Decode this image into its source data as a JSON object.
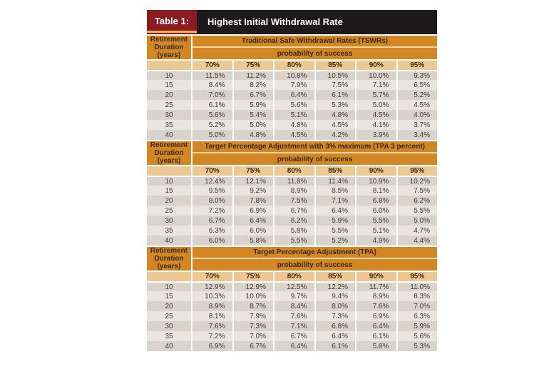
{
  "header": {
    "tag": "Table 1:",
    "title": "Highest Initial Withdrawal Rate"
  },
  "row_header": "Retirement Duration (years)",
  "subheader": "probability of success",
  "columns": [
    "70%",
    "75%",
    "80%",
    "85%",
    "90%",
    "95%"
  ],
  "sections": [
    {
      "title": "Traditional Safe Withdrawal Rates (TSWRs)",
      "rows": [
        {
          "years": "10",
          "values": [
            "11.5%",
            "11.2%",
            "10.8%",
            "10.5%",
            "10.0%",
            "9.3%"
          ]
        },
        {
          "years": "15",
          "values": [
            "8.4%",
            "8.2%",
            "7.9%",
            "7.5%",
            "7.1%",
            "6.5%"
          ]
        },
        {
          "years": "20",
          "values": [
            "7.0%",
            "6.7%",
            "6.4%",
            "6.1%",
            "5.7%",
            "5.2%"
          ]
        },
        {
          "years": "25",
          "values": [
            "6.1%",
            "5.9%",
            "5.6%",
            "5.3%",
            "5.0%",
            "4.5%"
          ]
        },
        {
          "years": "30",
          "values": [
            "5.6%",
            "5.4%",
            "5.1%",
            "4.8%",
            "4.5%",
            "4.0%"
          ]
        },
        {
          "years": "35",
          "values": [
            "5.2%",
            "5.0%",
            "4.8%",
            "4.5%",
            "4.1%",
            "3.7%"
          ]
        },
        {
          "years": "40",
          "values": [
            "5.0%",
            "4.8%",
            "4.5%",
            "4.2%",
            "3.9%",
            "3.4%"
          ]
        }
      ]
    },
    {
      "title": "Target Percentage Adjustment with 3% maximum (TPA 3 percent)",
      "rows": [
        {
          "years": "10",
          "values": [
            "12.4%",
            "12.1%",
            "11.8%",
            "11.4%",
            "10.9%",
            "10.2%"
          ]
        },
        {
          "years": "15",
          "values": [
            "9.5%",
            "9.2%",
            "8.9%",
            "8.5%",
            "8.1%",
            "7.5%"
          ]
        },
        {
          "years": "20",
          "values": [
            "8.0%",
            "7.8%",
            "7.5%",
            "7.1%",
            "6.8%",
            "6.2%"
          ]
        },
        {
          "years": "25",
          "values": [
            "7.2%",
            "6.9%",
            "6.7%",
            "6.4%",
            "6.0%",
            "5.5%"
          ]
        },
        {
          "years": "30",
          "values": [
            "6.7%",
            "6.4%",
            "6.2%",
            "5.9%",
            "5.5%",
            "5.0%"
          ]
        },
        {
          "years": "35",
          "values": [
            "6.3%",
            "6.0%",
            "5.8%",
            "5.5%",
            "5.1%",
            "4.7%"
          ]
        },
        {
          "years": "40",
          "values": [
            "6.0%",
            "5.8%",
            "5.5%",
            "5.2%",
            "4.9%",
            "4.4%"
          ]
        }
      ]
    },
    {
      "title": "Target Percentage Adjustment (TPA)",
      "rows": [
        {
          "years": "10",
          "values": [
            "12.9%",
            "12.9%",
            "12.5%",
            "12.2%",
            "11.7%",
            "11.0%"
          ]
        },
        {
          "years": "15",
          "values": [
            "10.3%",
            "10.0%",
            "9.7%",
            "9.4%",
            "8.9%",
            "8.3%"
          ]
        },
        {
          "years": "20",
          "values": [
            "8.9%",
            "8.7%",
            "8.4%",
            "8.0%",
            "7.6%",
            "7.0%"
          ]
        },
        {
          "years": "25",
          "values": [
            "8.1%",
            "7.9%",
            "7.6%",
            "7.3%",
            "6.9%",
            "6.3%"
          ]
        },
        {
          "years": "30",
          "values": [
            "7.6%",
            "7.3%",
            "7.1%",
            "6.8%",
            "6.4%",
            "5.9%"
          ]
        },
        {
          "years": "35",
          "values": [
            "7.2%",
            "7.0%",
            "6.7%",
            "6.4%",
            "6.1%",
            "5.6%"
          ]
        },
        {
          "years": "40",
          "values": [
            "6.9%",
            "6.7%",
            "6.4%",
            "6.1%",
            "5.8%",
            "5.3%"
          ]
        }
      ]
    }
  ],
  "colors": {
    "tag_bg": "#8c1c1f",
    "title_bg": "#1c1a1a",
    "header_orange": "#d28724",
    "header_light": "#ecc993",
    "row_dark": "#d8d3cb",
    "row_light": "#e8e5df"
  }
}
